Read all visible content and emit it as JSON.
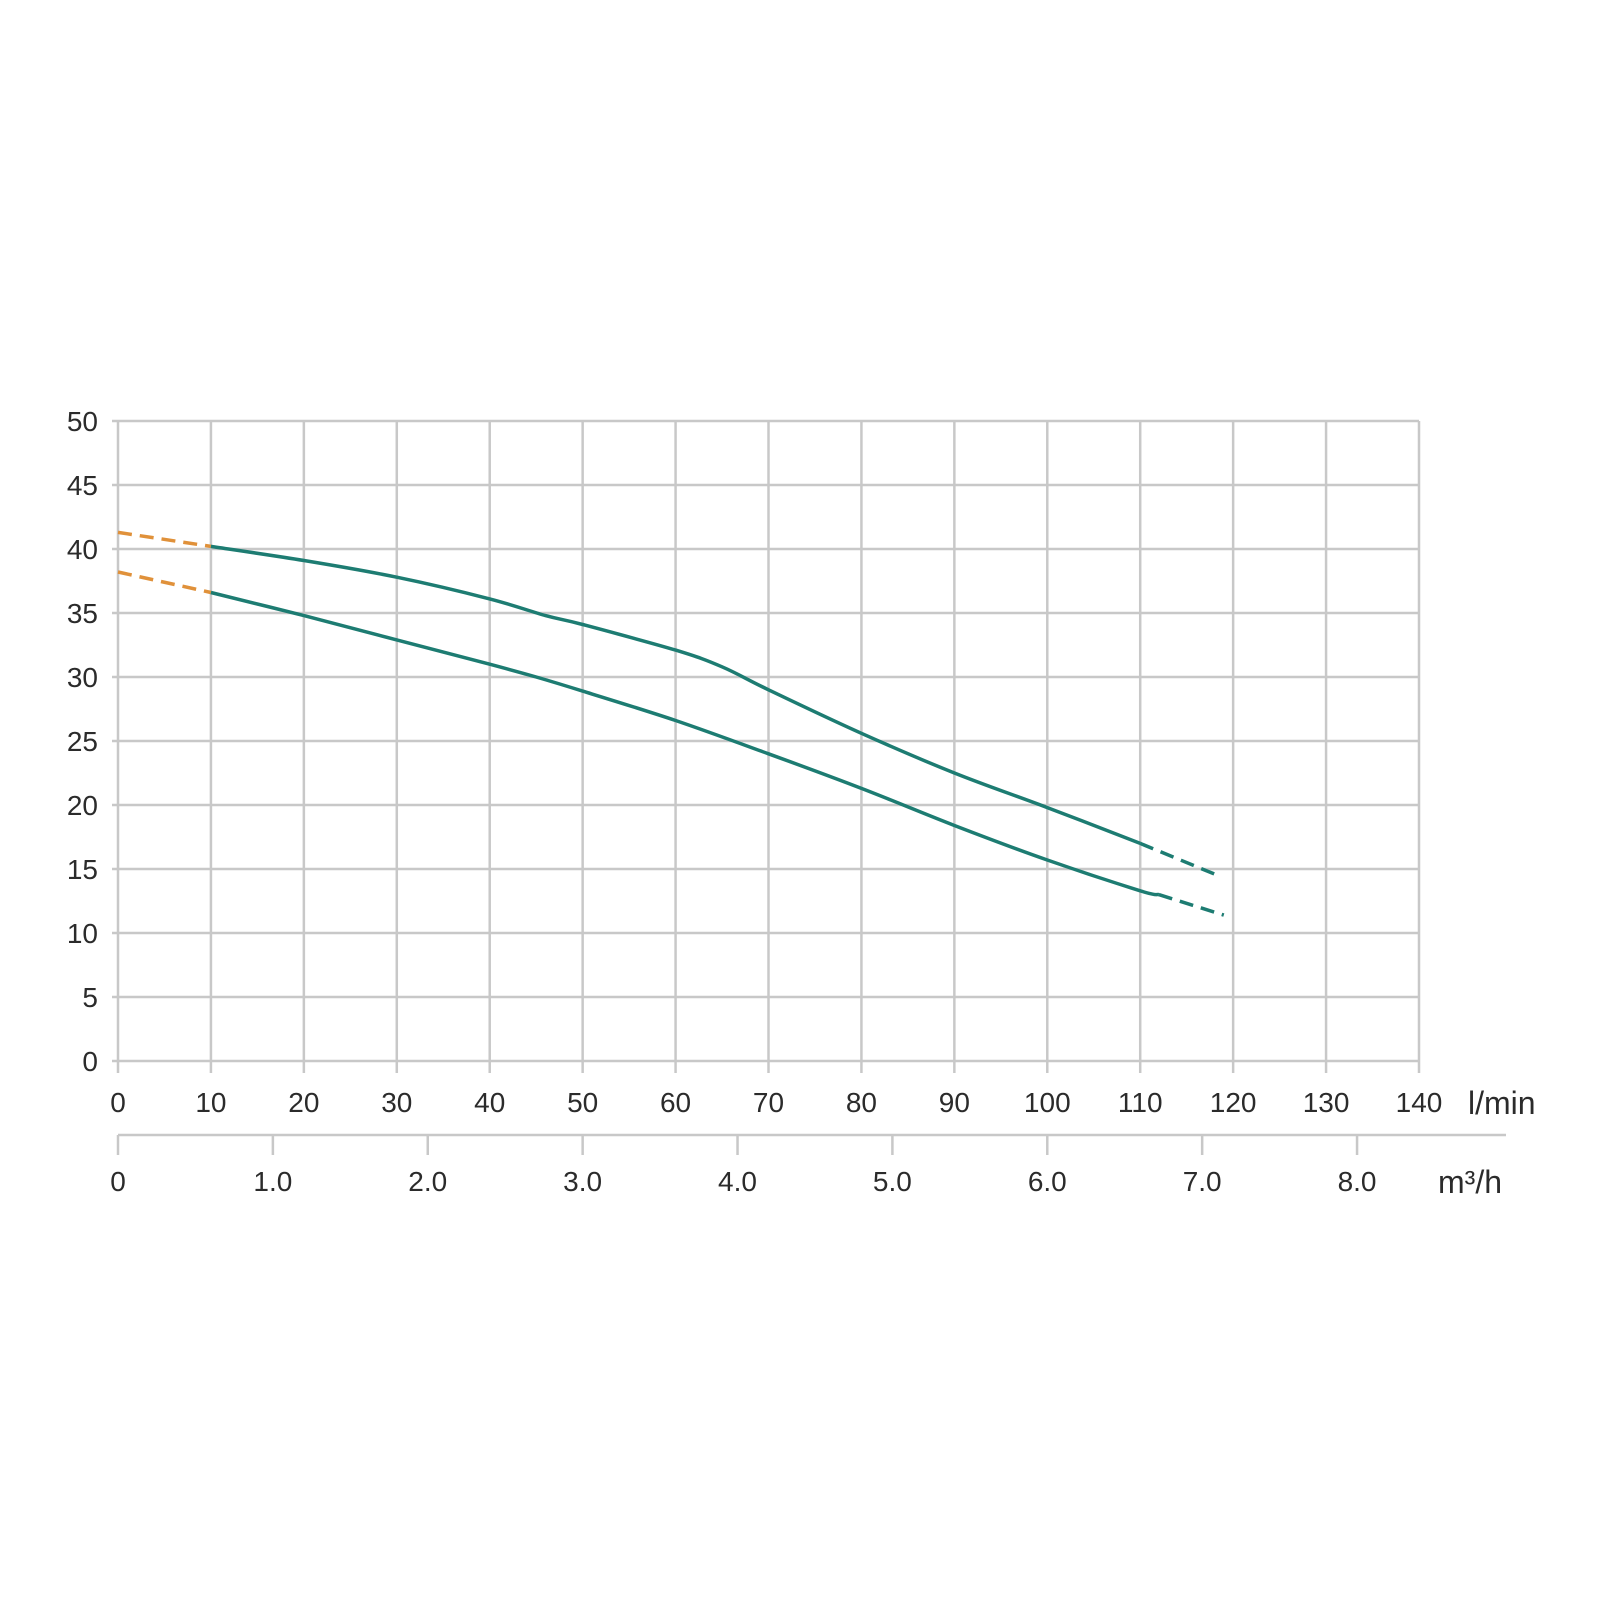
{
  "chart_data": {
    "type": "line",
    "x_unit": "l/min",
    "secondary_x_unit": "m³/h",
    "xlim": [
      0,
      140
    ],
    "ylim": [
      0,
      50
    ],
    "x_ticks": [
      "0",
      "10",
      "20",
      "30",
      "40",
      "50",
      "60",
      "70",
      "80",
      "90",
      "100",
      "110",
      "120",
      "130",
      "140"
    ],
    "y_ticks": [
      "0",
      "5",
      "10",
      "15",
      "20",
      "25",
      "30",
      "35",
      "40",
      "45",
      "50"
    ],
    "secondary_x_ticks": [
      {
        "label": "0",
        "value": 0
      },
      {
        "label": "1.0",
        "value": 1.0
      },
      {
        "label": "2.0",
        "value": 2.0
      },
      {
        "label": "3.0",
        "value": 3.0
      },
      {
        "label": "4.0",
        "value": 4.0
      },
      {
        "label": "5.0",
        "value": 5.0
      },
      {
        "label": "6.0",
        "value": 6.0
      },
      {
        "label": "7.0",
        "value": 7.0
      },
      {
        "label": "8.0",
        "value": 8.0
      }
    ],
    "grid": true,
    "colors": {
      "curve": "#1d7c72",
      "extrapolation": "#e0913a",
      "grid": "#c8c8c8"
    },
    "series": [
      {
        "solid": {
          "x": [
            10,
            20,
            30,
            40,
            46,
            50,
            60,
            65,
            70,
            80,
            90,
            100,
            110
          ],
          "y": [
            40.2,
            39.1,
            37.8,
            36.1,
            34.8,
            34.1,
            32.1,
            30.8,
            29.0,
            25.6,
            22.5,
            19.8,
            17.0
          ]
        },
        "dashed_start": {
          "x": [
            0,
            10
          ],
          "y": [
            41.3,
            40.2
          ]
        },
        "dashed_end": {
          "x": [
            110,
            118
          ],
          "y": [
            17.0,
            14.6
          ]
        }
      },
      {
        "solid": {
          "x": [
            10,
            20,
            30,
            40,
            45,
            50,
            60,
            70,
            80,
            90,
            100,
            110,
            112
          ],
          "y": [
            36.6,
            34.8,
            32.9,
            31.0,
            30.0,
            28.9,
            26.6,
            24.0,
            21.3,
            18.4,
            15.7,
            13.3,
            13.0
          ]
        },
        "dashed_start": {
          "x": [
            0,
            10
          ],
          "y": [
            38.2,
            36.6
          ]
        },
        "dashed_end": {
          "x": [
            112,
            119
          ],
          "y": [
            13.0,
            11.4
          ]
        }
      }
    ]
  }
}
